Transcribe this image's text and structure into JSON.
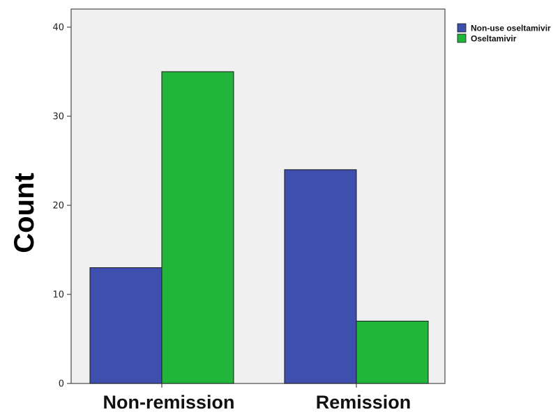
{
  "chart_data": {
    "type": "bar",
    "categories": [
      "Non-remission",
      "Remission"
    ],
    "series": [
      {
        "name": "Non-use oseltamivir",
        "values": [
          13,
          24
        ],
        "color": "#3f4fae"
      },
      {
        "name": "Oseltamivir",
        "values": [
          35,
          7
        ],
        "color": "#22b53c"
      }
    ],
    "ylabel": "Count",
    "xlabel": "",
    "ylim": [
      0,
      42
    ],
    "yticks": [
      0,
      10,
      20,
      30,
      40
    ],
    "grid": false,
    "legend": "outside-top-right",
    "plot_background": "#f0f0f0"
  }
}
